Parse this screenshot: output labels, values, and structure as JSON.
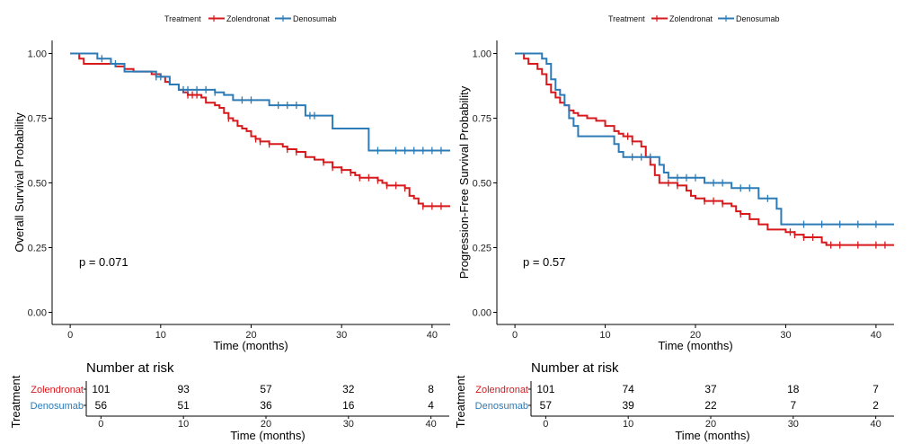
{
  "chart_data": [
    {
      "type": "line",
      "subtype": "kaplan-meier",
      "legend": {
        "title": "Treatment",
        "placement": "top-center",
        "entries": [
          "Zolendronat",
          "Denosumab"
        ]
      },
      "xlabel": "Time (months)",
      "ylabel": "Overall Survival Probability",
      "xlim": [
        -2,
        42
      ],
      "ylim": [
        0,
        1
      ],
      "xticks": [
        0,
        10,
        20,
        30,
        40
      ],
      "yticks": [
        0.0,
        0.25,
        0.5,
        0.75,
        1.0
      ],
      "ytick_labels": [
        "0.00",
        "0.25",
        "0.50",
        "0.75",
        "1.00"
      ],
      "annotation": "p = 0.071",
      "series": [
        {
          "name": "Zolendronat",
          "color": "#d7191c",
          "steps": [
            [
              0,
              1.0
            ],
            [
              1,
              0.98
            ],
            [
              1.5,
              0.96
            ],
            [
              5,
              0.95
            ],
            [
              6,
              0.94
            ],
            [
              7,
              0.93
            ],
            [
              9,
              0.92
            ],
            [
              10,
              0.91
            ],
            [
              10.5,
              0.89
            ],
            [
              11,
              0.88
            ],
            [
              12,
              0.86
            ],
            [
              12.5,
              0.85
            ],
            [
              13,
              0.84
            ],
            [
              14,
              0.84
            ],
            [
              14.5,
              0.83
            ],
            [
              15,
              0.81
            ],
            [
              16,
              0.8
            ],
            [
              16.5,
              0.79
            ],
            [
              17,
              0.77
            ],
            [
              17.5,
              0.75
            ],
            [
              18,
              0.74
            ],
            [
              18.5,
              0.72
            ],
            [
              19,
              0.71
            ],
            [
              19.5,
              0.7
            ],
            [
              20,
              0.68
            ],
            [
              20.5,
              0.67
            ],
            [
              21,
              0.66
            ],
            [
              22,
              0.65
            ],
            [
              23,
              0.65
            ],
            [
              23.5,
              0.64
            ],
            [
              24,
              0.63
            ],
            [
              25,
              0.62
            ],
            [
              26,
              0.6
            ],
            [
              27,
              0.59
            ],
            [
              28,
              0.58
            ],
            [
              29,
              0.56
            ],
            [
              30,
              0.55
            ],
            [
              31,
              0.54
            ],
            [
              31.5,
              0.53
            ],
            [
              32,
              0.52
            ],
            [
              34,
              0.51
            ],
            [
              34.5,
              0.5
            ],
            [
              35,
              0.49
            ],
            [
              37,
              0.48
            ],
            [
              37.5,
              0.45
            ],
            [
              38,
              0.44
            ],
            [
              38.5,
              0.42
            ],
            [
              39,
              0.41
            ],
            [
              42,
              0.41
            ]
          ],
          "censors": [
            [
              13,
              0.84
            ],
            [
              13.5,
              0.84
            ],
            [
              14,
              0.84
            ],
            [
              17.5,
              0.75
            ],
            [
              20.5,
              0.67
            ],
            [
              21,
              0.66
            ],
            [
              22,
              0.65
            ],
            [
              24,
              0.63
            ],
            [
              25,
              0.62
            ],
            [
              28,
              0.58
            ],
            [
              29,
              0.56
            ],
            [
              30,
              0.55
            ],
            [
              31,
              0.54
            ],
            [
              32,
              0.52
            ],
            [
              33,
              0.52
            ],
            [
              34,
              0.51
            ],
            [
              35,
              0.49
            ],
            [
              36,
              0.49
            ],
            [
              37,
              0.48
            ],
            [
              39,
              0.41
            ],
            [
              40,
              0.41
            ],
            [
              41,
              0.41
            ]
          ]
        },
        {
          "name": "Denosumab",
          "color": "#2c7bb6",
          "steps": [
            [
              0,
              1.0
            ],
            [
              3,
              0.98
            ],
            [
              4.5,
              0.96
            ],
            [
              6,
              0.93
            ],
            [
              9.5,
              0.91
            ],
            [
              11,
              0.88
            ],
            [
              12,
              0.86
            ],
            [
              16,
              0.85
            ],
            [
              17,
              0.84
            ],
            [
              18,
              0.82
            ],
            [
              22,
              0.8
            ],
            [
              26,
              0.76
            ],
            [
              29,
              0.71
            ],
            [
              33,
              0.625
            ],
            [
              42,
              0.625
            ]
          ],
          "censors": [
            [
              3.5,
              0.98
            ],
            [
              5,
              0.96
            ],
            [
              9.5,
              0.91
            ],
            [
              10,
              0.91
            ],
            [
              12.5,
              0.86
            ],
            [
              13,
              0.86
            ],
            [
              14,
              0.86
            ],
            [
              15,
              0.86
            ],
            [
              16,
              0.85
            ],
            [
              19,
              0.82
            ],
            [
              20,
              0.82
            ],
            [
              23,
              0.8
            ],
            [
              24,
              0.8
            ],
            [
              25,
              0.8
            ],
            [
              26.5,
              0.76
            ],
            [
              27,
              0.76
            ],
            [
              34,
              0.625
            ],
            [
              36,
              0.625
            ],
            [
              37,
              0.625
            ],
            [
              38,
              0.625
            ],
            [
              39,
              0.625
            ],
            [
              40,
              0.625
            ],
            [
              41,
              0.625
            ]
          ]
        }
      ],
      "risk_table": {
        "title": "Number at risk",
        "ylabel": "Treatment",
        "xlabel": "Time (months)",
        "times": [
          0,
          10,
          20,
          30,
          40
        ],
        "rows": [
          {
            "name": "Zolendronat",
            "values": [
              "101",
              "93",
              "57",
              "32",
              "8"
            ]
          },
          {
            "name": "Denosumab",
            "values": [
              "56",
              "51",
              "36",
              "16",
              "4"
            ]
          }
        ]
      }
    },
    {
      "type": "line",
      "subtype": "kaplan-meier",
      "legend": {
        "title": "Treatment",
        "placement": "top-center",
        "entries": [
          "Zolendronat",
          "Denosumab"
        ]
      },
      "xlabel": "Time (months)",
      "ylabel": "Progression-Free Survival Probability",
      "xlim": [
        -2,
        42
      ],
      "ylim": [
        0,
        1
      ],
      "xticks": [
        0,
        10,
        20,
        30,
        40
      ],
      "yticks": [
        0.0,
        0.25,
        0.5,
        0.75,
        1.0
      ],
      "ytick_labels": [
        "0.00",
        "0.25",
        "0.50",
        "0.75",
        "1.00"
      ],
      "annotation": "p = 0.57",
      "series": [
        {
          "name": "Zolendronat",
          "color": "#d7191c",
          "steps": [
            [
              0,
              1.0
            ],
            [
              1,
              0.98
            ],
            [
              1.5,
              0.96
            ],
            [
              2.5,
              0.94
            ],
            [
              3,
              0.92
            ],
            [
              3.5,
              0.88
            ],
            [
              4,
              0.85
            ],
            [
              4.5,
              0.83
            ],
            [
              5,
              0.81
            ],
            [
              5.5,
              0.8
            ],
            [
              6,
              0.78
            ],
            [
              6.5,
              0.77
            ],
            [
              7,
              0.76
            ],
            [
              8,
              0.75
            ],
            [
              9,
              0.74
            ],
            [
              10,
              0.72
            ],
            [
              11,
              0.7
            ],
            [
              11.5,
              0.69
            ],
            [
              12,
              0.68
            ],
            [
              13,
              0.66
            ],
            [
              14,
              0.64
            ],
            [
              14.5,
              0.6
            ],
            [
              15,
              0.57
            ],
            [
              15.5,
              0.53
            ],
            [
              16,
              0.5
            ],
            [
              18,
              0.49
            ],
            [
              19,
              0.47
            ],
            [
              19.5,
              0.45
            ],
            [
              20,
              0.44
            ],
            [
              21,
              0.43
            ],
            [
              23,
              0.42
            ],
            [
              24,
              0.41
            ],
            [
              24.5,
              0.39
            ],
            [
              25,
              0.38
            ],
            [
              26,
              0.36
            ],
            [
              27,
              0.34
            ],
            [
              28,
              0.32
            ],
            [
              30,
              0.31
            ],
            [
              31,
              0.3
            ],
            [
              32,
              0.29
            ],
            [
              34,
              0.27
            ],
            [
              34.5,
              0.26
            ],
            [
              42,
              0.26
            ]
          ],
          "censors": [
            [
              12.5,
              0.68
            ],
            [
              13,
              0.66
            ],
            [
              17,
              0.5
            ],
            [
              18,
              0.49
            ],
            [
              21,
              0.43
            ],
            [
              22,
              0.43
            ],
            [
              23,
              0.42
            ],
            [
              25,
              0.38
            ],
            [
              30.5,
              0.31
            ],
            [
              31,
              0.3
            ],
            [
              32,
              0.29
            ],
            [
              33,
              0.29
            ],
            [
              35,
              0.26
            ],
            [
              36,
              0.26
            ],
            [
              38,
              0.26
            ],
            [
              40,
              0.26
            ],
            [
              41,
              0.26
            ]
          ]
        },
        {
          "name": "Denosumab",
          "color": "#2c7bb6",
          "steps": [
            [
              0,
              1.0
            ],
            [
              3,
              0.98
            ],
            [
              3.5,
              0.96
            ],
            [
              4,
              0.9
            ],
            [
              4.5,
              0.86
            ],
            [
              5,
              0.84
            ],
            [
              5.5,
              0.8
            ],
            [
              6,
              0.75
            ],
            [
              6.5,
              0.72
            ],
            [
              7,
              0.68
            ],
            [
              11,
              0.65
            ],
            [
              11.5,
              0.62
            ],
            [
              12,
              0.6
            ],
            [
              16,
              0.57
            ],
            [
              16.5,
              0.54
            ],
            [
              17,
              0.52
            ],
            [
              21,
              0.5
            ],
            [
              24,
              0.48
            ],
            [
              27,
              0.44
            ],
            [
              29,
              0.4
            ],
            [
              29.5,
              0.34
            ],
            [
              42,
              0.34
            ]
          ],
          "censors": [
            [
              13,
              0.6
            ],
            [
              14,
              0.6
            ],
            [
              15,
              0.6
            ],
            [
              18,
              0.52
            ],
            [
              19,
              0.52
            ],
            [
              20,
              0.52
            ],
            [
              22,
              0.5
            ],
            [
              23,
              0.5
            ],
            [
              25,
              0.48
            ],
            [
              26,
              0.48
            ],
            [
              28,
              0.44
            ],
            [
              32,
              0.34
            ],
            [
              34,
              0.34
            ],
            [
              36,
              0.34
            ],
            [
              38,
              0.34
            ],
            [
              40,
              0.34
            ]
          ]
        }
      ],
      "risk_table": {
        "title": "Number at risk",
        "ylabel": "Treatment",
        "xlabel": "Time (months)",
        "times": [
          0,
          10,
          20,
          30,
          40
        ],
        "rows": [
          {
            "name": "Zolendronat",
            "values": [
              "101",
              "74",
              "37",
              "18",
              "7"
            ]
          },
          {
            "name": "Denosumab",
            "values": [
              "57",
              "39",
              "22",
              "7",
              "2"
            ]
          }
        ]
      }
    }
  ]
}
